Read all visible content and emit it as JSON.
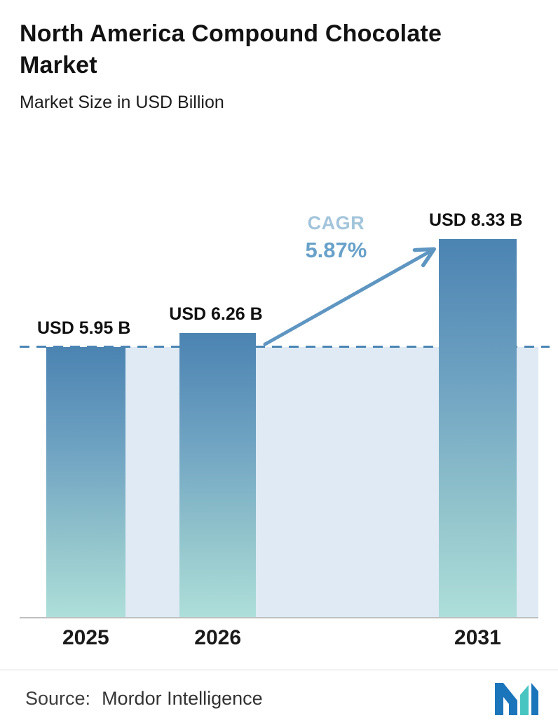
{
  "header": {
    "title": "North America Compound Chocolate Market",
    "subtitle": "Market Size in USD Billion"
  },
  "chart_data": {
    "type": "bar",
    "title": "North America Compound Chocolate Market",
    "ylabel": "Market Size in USD Billion",
    "categories": [
      "2025",
      "2026",
      "2031"
    ],
    "values": [
      5.95,
      6.26,
      8.33
    ],
    "value_labels": [
      "USD 5.95 B",
      "USD 6.26 B",
      "USD 8.33 B"
    ],
    "ylim": [
      0,
      9
    ],
    "grid": false,
    "legend": false,
    "baseline_value": 5.95,
    "cagr_label": "CAGR",
    "cagr_value": "5.87%",
    "colors": {
      "bar_top": "#4b83b2",
      "bar_bottom": "#aedfda",
      "band": "#dfeaf4",
      "dashed_line": "#4c86b4",
      "arrow": "#5e96c1",
      "cagr_label_color": "#a3c5db",
      "cagr_value_color": "#68a1c9"
    }
  },
  "footer": {
    "source_label": "Source:",
    "source_value": "Mordor Intelligence",
    "logo": "mordor-intelligence-logo"
  }
}
